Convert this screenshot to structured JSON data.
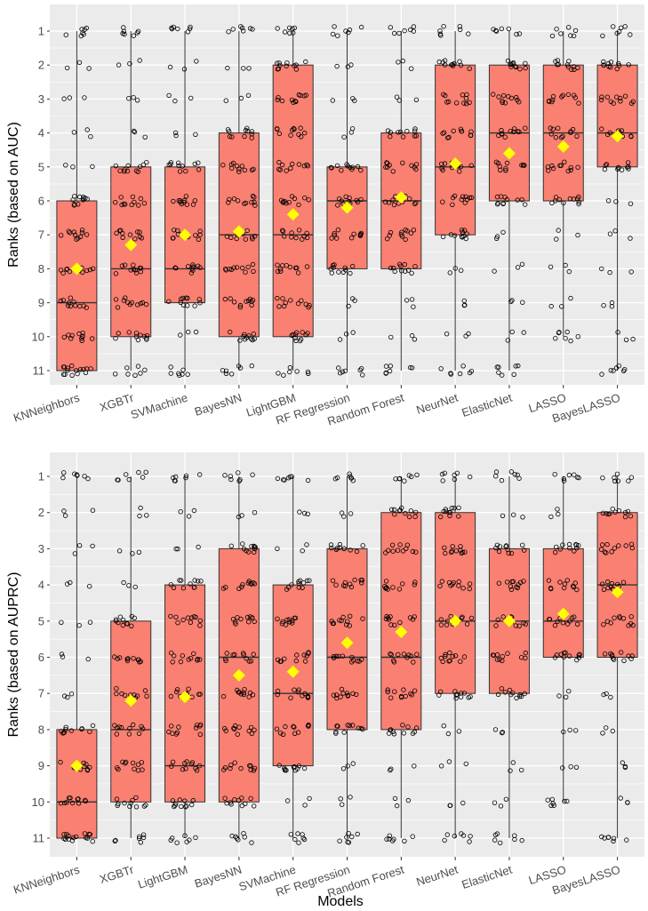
{
  "page": {
    "xlabel": "Models",
    "background": "#ebebeb",
    "box_fill": "#fa8072",
    "mean_color": "#ffff00",
    "grid_color": "#ffffff"
  },
  "chart_data": [
    {
      "type": "boxplot",
      "ylabel": "Ranks (based on AUC)",
      "y_ticks": [
        "1",
        "2",
        "3",
        "4",
        "5",
        "6",
        "7",
        "8",
        "9",
        "10",
        "11"
      ],
      "y_reversed": true,
      "ylim": [
        0.6,
        11.4
      ],
      "grid": true,
      "categories": [
        "KNNeighbors",
        "XGBTr",
        "SVMachine",
        "BayesNN",
        "LightGBM",
        "RF Regression",
        "Random Forest",
        "NeurNet",
        "ElasticNet",
        "LASSO",
        "BayesLASSO"
      ],
      "boxes": [
        {
          "min": 1,
          "q1": 6,
          "median": 9,
          "q3": 11,
          "max": 11,
          "mean": 8.0
        },
        {
          "min": 1,
          "q1": 5,
          "median": 8,
          "q3": 10,
          "max": 11,
          "mean": 7.3
        },
        {
          "min": 1,
          "q1": 5,
          "median": 8,
          "q3": 9,
          "max": 11,
          "mean": 7.0
        },
        {
          "min": 1,
          "q1": 4,
          "median": 7,
          "q3": 10,
          "max": 11,
          "mean": 6.9
        },
        {
          "min": 1,
          "q1": 2,
          "median": 7,
          "q3": 10,
          "max": 11,
          "mean": 6.4
        },
        {
          "min": 1,
          "q1": 5,
          "median": 6,
          "q3": 8,
          "max": 11,
          "mean": 6.2
        },
        {
          "min": 1,
          "q1": 4,
          "median": 6,
          "q3": 8,
          "max": 11,
          "mean": 5.9
        },
        {
          "min": 1,
          "q1": 2,
          "median": 5,
          "q3": 7,
          "max": 11,
          "mean": 4.9
        },
        {
          "min": 1,
          "q1": 2,
          "median": 4,
          "q3": 6,
          "max": 11,
          "mean": 4.6
        },
        {
          "min": 1,
          "q1": 2,
          "median": 4,
          "q3": 6,
          "max": 10,
          "mean": 4.4
        },
        {
          "min": 1,
          "q1": 2,
          "median": 4,
          "q3": 5,
          "max": 11,
          "mean": 4.1
        }
      ]
    },
    {
      "type": "boxplot",
      "ylabel": "Ranks (based on AUPRC)",
      "y_ticks": [
        "1",
        "2",
        "3",
        "4",
        "5",
        "6",
        "7",
        "8",
        "9",
        "10",
        "11"
      ],
      "y_reversed": true,
      "ylim": [
        0.6,
        11.4
      ],
      "grid": true,
      "categories": [
        "KNNeighbors",
        "XGBTr",
        "LightGBM",
        "BayesNN",
        "SVMachine",
        "RF Regression",
        "Random Forest",
        "NeurNet",
        "ElasticNet",
        "LASSO",
        "BayesLASSO"
      ],
      "boxes": [
        {
          "min": 1,
          "q1": 8,
          "median": 10,
          "q3": 11,
          "max": 11,
          "mean": 9.0
        },
        {
          "min": 1,
          "q1": 5,
          "median": 8,
          "q3": 10,
          "max": 11,
          "mean": 7.2
        },
        {
          "min": 1,
          "q1": 4,
          "median": 9,
          "q3": 10,
          "max": 11,
          "mean": 7.1
        },
        {
          "min": 1,
          "q1": 3,
          "median": 6,
          "q3": 10,
          "max": 11,
          "mean": 6.5
        },
        {
          "min": 1,
          "q1": 4,
          "median": 7,
          "q3": 9,
          "max": 11,
          "mean": 6.4
        },
        {
          "min": 1,
          "q1": 3,
          "median": 6,
          "q3": 8,
          "max": 11,
          "mean": 5.6
        },
        {
          "min": 1,
          "q1": 2,
          "median": 6,
          "q3": 8,
          "max": 11,
          "mean": 5.3
        },
        {
          "min": 1,
          "q1": 2,
          "median": 5,
          "q3": 7,
          "max": 11,
          "mean": 5.0
        },
        {
          "min": 1,
          "q1": 3,
          "median": 5,
          "q3": 7,
          "max": 11,
          "mean": 5.0
        },
        {
          "min": 1,
          "q1": 3,
          "median": 5,
          "q3": 6,
          "max": 10,
          "mean": 4.8
        },
        {
          "min": 1,
          "q1": 2,
          "median": 4,
          "q3": 6,
          "max": 11,
          "mean": 4.2
        }
      ]
    }
  ]
}
